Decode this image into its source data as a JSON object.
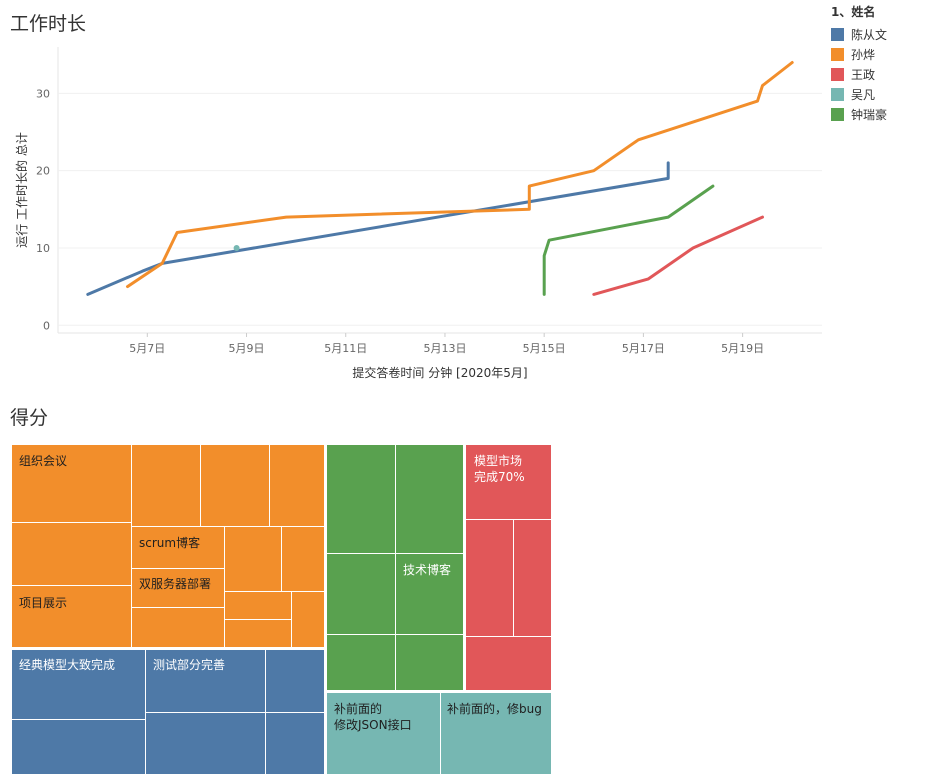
{
  "line_sheet": {
    "title": "工作时长"
  },
  "treemap_sheet": {
    "title": "得分"
  },
  "legend": {
    "title": "1、姓名",
    "items": [
      {
        "name": "陈从文",
        "color": "#4e79a7"
      },
      {
        "name": "孙烨",
        "color": "#f28e2b"
      },
      {
        "name": "王政",
        "color": "#e15759"
      },
      {
        "name": "吴凡",
        "color": "#76b7b2"
      },
      {
        "name": "钟瑞豪",
        "color": "#59a14f"
      }
    ]
  },
  "chart_data": [
    {
      "type": "line",
      "title": "工作时长",
      "xlabel": "提交答卷时间 分钟 [2020年5月]",
      "ylabel": "运行 工作时长的 总计",
      "x_unit": "day of May 2020",
      "xlim": [
        5.2,
        20.6
      ],
      "ylim": [
        -1,
        36
      ],
      "x_ticks": [
        7,
        9,
        11,
        13,
        15,
        17,
        19
      ],
      "x_tick_labels": [
        "5月7日",
        "5月9日",
        "5月11日",
        "5月13日",
        "5月15日",
        "5月17日",
        "5月19日"
      ],
      "y_ticks": [
        0,
        10,
        20,
        30
      ],
      "y_tick_labels": [
        "0",
        "10",
        "20",
        "30"
      ],
      "grid": true,
      "series": [
        {
          "name": "陈从文",
          "color": "#4e79a7",
          "x": [
            5.8,
            6.9,
            7.3,
            17.5,
            17.5
          ],
          "y": [
            4,
            7,
            8,
            19,
            21
          ]
        },
        {
          "name": "孙烨",
          "color": "#f28e2b",
          "x": [
            6.6,
            7.3,
            7.6,
            9.8,
            14.7,
            14.7,
            16.0,
            16.9,
            19.3,
            19.4,
            20.0
          ],
          "y": [
            5,
            8,
            12,
            14,
            15,
            18,
            20,
            24,
            29,
            31,
            34
          ]
        },
        {
          "name": "王政",
          "color": "#e15759",
          "x": [
            16.0,
            17.1,
            18.0,
            19.4
          ],
          "y": [
            4,
            6,
            10,
            14
          ]
        },
        {
          "name": "吴凡",
          "color": "#76b7b2",
          "x": [
            8.8
          ],
          "y": [
            10
          ]
        },
        {
          "name": "钟瑞豪",
          "color": "#59a14f",
          "x": [
            15.0,
            15.0,
            15.1,
            17.5,
            18.4
          ],
          "y": [
            4,
            9,
            11,
            14,
            18
          ]
        }
      ]
    },
    {
      "type": "treemap",
      "title": "得分",
      "groups": [
        {
          "name": "孙烨",
          "color": "#f28e2b",
          "labels": [
            "组织会议",
            "scrum博客",
            "双服务器部署",
            "项目展示"
          ]
        },
        {
          "name": "陈从文",
          "color": "#4e79a7",
          "labels": [
            "经典模型大致完成",
            "测试部分完善"
          ]
        },
        {
          "name": "钟瑞豪",
          "color": "#59a14f",
          "labels": [
            "技术博客"
          ]
        },
        {
          "name": "王政",
          "color": "#e15759",
          "labels": [
            "模型市场\n完成70%"
          ]
        },
        {
          "name": "吴凡",
          "color": "#76b7b2",
          "labels": [
            "补前面的\n修改JSON接口",
            "补前面的，修bug"
          ]
        }
      ]
    }
  ]
}
